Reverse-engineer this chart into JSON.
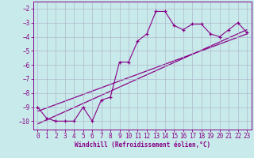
{
  "xlabel": "Windchill (Refroidissement éolien,°C)",
  "background_color": "#c8eaea",
  "grid_color": "#b0b8cc",
  "line_color": "#880088",
  "x_data": [
    0,
    1,
    2,
    3,
    4,
    5,
    6,
    7,
    8,
    9,
    10,
    11,
    12,
    13,
    14,
    15,
    16,
    17,
    18,
    19,
    20,
    21,
    22,
    23
  ],
  "y_data": [
    -9.0,
    -9.8,
    -10.0,
    -10.0,
    -10.0,
    -9.0,
    -10.0,
    -8.5,
    -8.3,
    -5.8,
    -5.8,
    -4.3,
    -3.8,
    -2.2,
    -2.2,
    -3.2,
    -3.5,
    -3.1,
    -3.1,
    -3.8,
    -4.0,
    -3.5,
    -3.0,
    -3.7
  ],
  "trend1_x": [
    0,
    23
  ],
  "trend1_y": [
    -10.2,
    -3.5
  ],
  "trend2_x": [
    0,
    23
  ],
  "trend2_y": [
    -9.3,
    -3.8
  ],
  "ylim": [
    -10.6,
    -1.5
  ],
  "xlim": [
    -0.5,
    23.5
  ],
  "yticks": [
    -10,
    -9,
    -8,
    -7,
    -6,
    -5,
    -4,
    -3,
    -2
  ],
  "xticks": [
    0,
    1,
    2,
    3,
    4,
    5,
    6,
    7,
    8,
    9,
    10,
    11,
    12,
    13,
    14,
    15,
    16,
    17,
    18,
    19,
    20,
    21,
    22,
    23
  ],
  "tick_fontsize": 5.5,
  "xlabel_fontsize": 5.5
}
